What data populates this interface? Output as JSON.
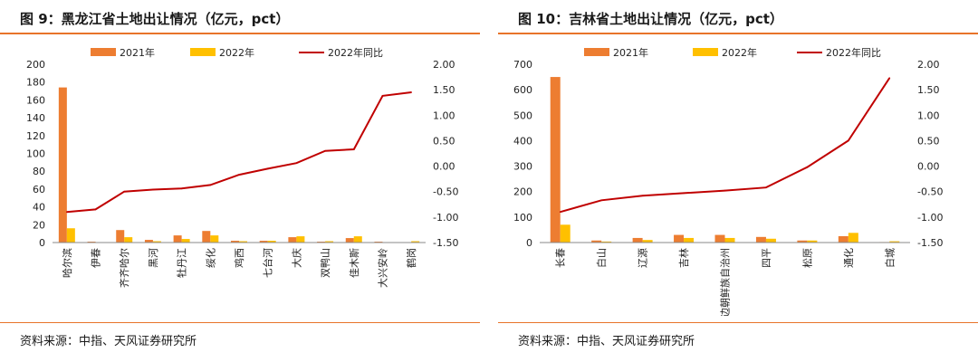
{
  "left": {
    "title": "图 9：黑龙江省土地出让情况（亿元，pct）",
    "source": "资料来源：中指、天风证券研究所",
    "chart_data": {
      "type": "bar",
      "categories": [
        "哈尔滨",
        "伊春",
        "齐齐哈尔",
        "黑河",
        "牡丹江",
        "绥化",
        "鸡西",
        "七台河",
        "大庆",
        "双鸭山",
        "佳木斯",
        "大兴安岭",
        "鹤岗"
      ],
      "series": [
        {
          "name": "2021年",
          "type": "bar",
          "axis": "left",
          "color": "#ed7d31",
          "values": [
            174,
            1,
            14,
            3,
            8,
            13,
            2,
            2,
            6,
            1,
            5,
            1,
            0.5
          ]
        },
        {
          "name": "2022年",
          "type": "bar",
          "axis": "left",
          "color": "#ffc000",
          "values": [
            16,
            0.5,
            6,
            1.5,
            4,
            8,
            1.5,
            2,
            7,
            1.5,
            7,
            0.5,
            1.5
          ]
        },
        {
          "name": "2022年同比",
          "type": "line",
          "axis": "right",
          "color": "#c00000",
          "values": [
            -0.9,
            -0.85,
            -0.5,
            -0.46,
            -0.44,
            -0.37,
            -0.17,
            -0.05,
            0.06,
            0.3,
            0.33,
            1.38,
            1.45
          ]
        }
      ],
      "ylim_left": [
        0,
        200
      ],
      "yticks_left": [
        "0",
        "20",
        "40",
        "60",
        "80",
        "100",
        "120",
        "140",
        "160",
        "180",
        "200"
      ],
      "ylim_right": [
        -1.5,
        2.0
      ],
      "yticks_right": [
        "-1.50",
        "-1.00",
        "-0.50",
        "0.00",
        "0.50",
        "1.00",
        "1.50",
        "2.00"
      ],
      "legend_position": "top"
    }
  },
  "right": {
    "title": "图 10：吉林省土地出让情况（亿元，pct）",
    "source": "资料来源：中指、天风证券研究所",
    "chart_data": {
      "type": "bar",
      "categories": [
        "长春",
        "白山",
        "辽源",
        "吉林",
        "延边朝鲜族自治州",
        "四平",
        "松原",
        "通化",
        "白城"
      ],
      "series": [
        {
          "name": "2021年",
          "type": "bar",
          "axis": "left",
          "color": "#ed7d31",
          "values": [
            650,
            8,
            18,
            30,
            30,
            22,
            8,
            25,
            2
          ]
        },
        {
          "name": "2022年",
          "type": "bar",
          "axis": "left",
          "color": "#ffc000",
          "values": [
            70,
            4,
            10,
            18,
            18,
            15,
            8,
            38,
            5
          ]
        },
        {
          "name": "2022年同比",
          "type": "line",
          "axis": "right",
          "color": "#c00000",
          "values": [
            -0.9,
            -0.67,
            -0.58,
            -0.53,
            -0.48,
            -0.42,
            -0.02,
            0.5,
            1.73
          ]
        }
      ],
      "ylim_left": [
        0,
        700
      ],
      "yticks_left": [
        "0",
        "100",
        "200",
        "300",
        "400",
        "500",
        "600",
        "700"
      ],
      "ylim_right": [
        -1.5,
        2.0
      ],
      "yticks_right": [
        "-1.50",
        "-1.00",
        "-0.50",
        "0.00",
        "0.50",
        "1.00",
        "1.50",
        "2.00"
      ],
      "legend_position": "top"
    }
  }
}
